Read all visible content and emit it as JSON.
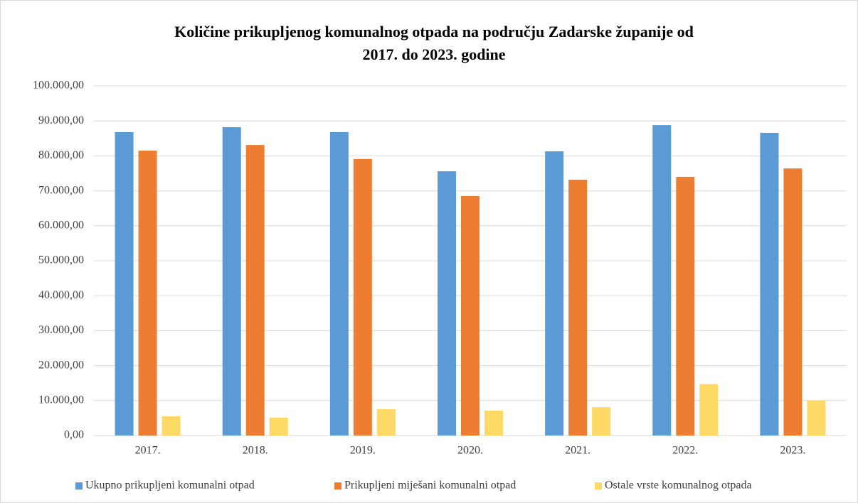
{
  "chart_data": {
    "type": "bar",
    "title": [
      "Količine prikupljenog komunalnog otpada na području Zadarske županije od",
      "2017. do 2023. godine"
    ],
    "categories": [
      "2017.",
      "2018.",
      "2019.",
      "2020.",
      "2021.",
      "2022.",
      "2023."
    ],
    "series": [
      {
        "name": "Ukupno prikupljeni komunalni otpad",
        "color": "#5b9bd5",
        "values": [
          86800,
          88200,
          86800,
          75600,
          81300,
          88800,
          86600
        ]
      },
      {
        "name": "Prikupljeni miješani komunalni otpad",
        "color": "#ed7d31",
        "values": [
          81500,
          83100,
          79100,
          68500,
          73200,
          74000,
          76400
        ]
      },
      {
        "name": "Ostale vrste komunalnog otpada",
        "color": "#ffd966",
        "values": [
          5500,
          5100,
          7500,
          7100,
          8100,
          14700,
          10000
        ]
      }
    ],
    "ylim": [
      0,
      100000
    ],
    "yticks": [
      {
        "value": 0,
        "label": "0,00"
      },
      {
        "value": 10000,
        "label": "10.000,00"
      },
      {
        "value": 20000,
        "label": "20.000,00"
      },
      {
        "value": 30000,
        "label": "30.000,00"
      },
      {
        "value": 40000,
        "label": "40.000,00"
      },
      {
        "value": 50000,
        "label": "50.000,00"
      },
      {
        "value": 60000,
        "label": "60.000,00"
      },
      {
        "value": 70000,
        "label": "70.000,00"
      },
      {
        "value": 80000,
        "label": "80.000,00"
      },
      {
        "value": 90000,
        "label": "90.000,00"
      },
      {
        "value": 100000,
        "label": "100.000,00"
      }
    ],
    "grid": true,
    "legend": "bottom"
  }
}
